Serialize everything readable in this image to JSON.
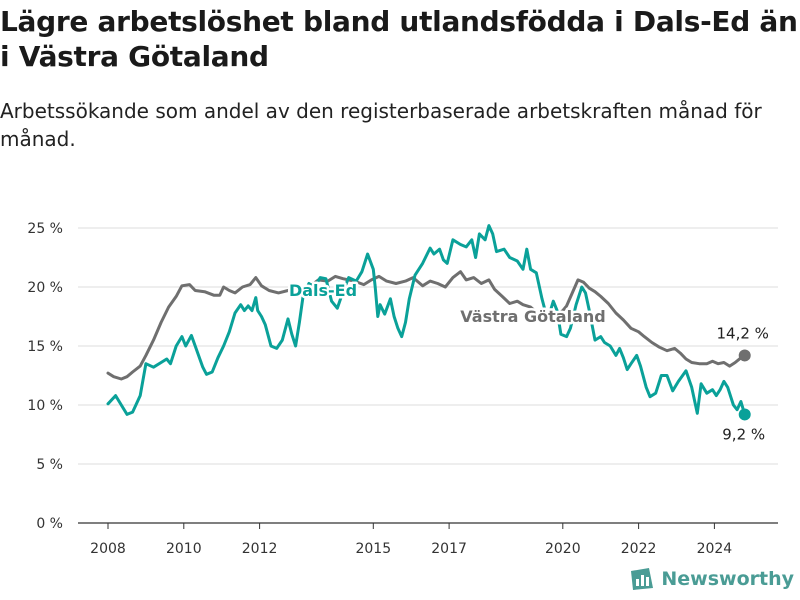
{
  "title": "Lägre arbetslöshet bland utlandsfödda i Dals-Ed än i Västra Götaland",
  "subtitle": "Arbetssökande som andel av den registerbaserade arbetskraften månad för månad.",
  "brand": {
    "name": "Newsworthy",
    "icon": "bar-chart-logo-icon"
  },
  "colors": {
    "dals_ed": "#0aa199",
    "vastra_gotaland": "#6f6f6f",
    "grid": "#dddddd",
    "brand": "#4a9c95"
  },
  "chart_data": {
    "type": "line",
    "title": "Lägre arbetslöshet bland utlandsfödda i Dals-Ed än i Västra Götaland",
    "subtitle": "Arbetssökande som andel av den registerbaserade arbetskraften månad för månad.",
    "xlabel": "",
    "ylabel": "",
    "x_range": [
      2008.0,
      2024.8
    ],
    "x_ticks": [
      2008,
      2010,
      2012,
      2015,
      2017,
      2020,
      2022,
      2024
    ],
    "x_tick_labels": [
      "2008",
      "2010",
      "2012",
      "2015",
      "2017",
      "2020",
      "2022",
      "2024"
    ],
    "ylim": [
      0,
      25
    ],
    "y_ticks": [
      0,
      5,
      10,
      15,
      20,
      25
    ],
    "y_tick_labels": [
      "0 %",
      "5 %",
      "10 %",
      "15 %",
      "20 %",
      "25 %"
    ],
    "grid": "horizontal",
    "series": [
      {
        "name": "Dals-Ed",
        "color": "#0aa199",
        "end_label": "9,2 %",
        "points": [
          [
            2008.0,
            10.1
          ],
          [
            2008.2,
            10.8
          ],
          [
            2008.35,
            10.0
          ],
          [
            2008.5,
            9.2
          ],
          [
            2008.65,
            9.4
          ],
          [
            2008.85,
            10.8
          ],
          [
            2009.0,
            13.5
          ],
          [
            2009.2,
            13.2
          ],
          [
            2009.4,
            13.6
          ],
          [
            2009.55,
            13.9
          ],
          [
            2009.65,
            13.5
          ],
          [
            2009.8,
            15.0
          ],
          [
            2009.95,
            15.8
          ],
          [
            2010.05,
            15.0
          ],
          [
            2010.2,
            15.9
          ],
          [
            2010.3,
            15.0
          ],
          [
            2010.5,
            13.2
          ],
          [
            2010.6,
            12.6
          ],
          [
            2010.75,
            12.8
          ],
          [
            2010.9,
            14.0
          ],
          [
            2011.05,
            15.0
          ],
          [
            2011.2,
            16.2
          ],
          [
            2011.35,
            17.8
          ],
          [
            2011.5,
            18.5
          ],
          [
            2011.6,
            18.0
          ],
          [
            2011.7,
            18.4
          ],
          [
            2011.8,
            18.0
          ],
          [
            2011.9,
            19.1
          ],
          [
            2011.95,
            18.0
          ],
          [
            2012.05,
            17.5
          ],
          [
            2012.15,
            16.8
          ],
          [
            2012.3,
            15.0
          ],
          [
            2012.45,
            14.8
          ],
          [
            2012.6,
            15.5
          ],
          [
            2012.75,
            17.3
          ],
          [
            2012.85,
            16.0
          ],
          [
            2012.95,
            15.0
          ],
          [
            2013.05,
            17.0
          ],
          [
            2013.15,
            19.3
          ],
          [
            2013.3,
            20.3
          ],
          [
            2013.45,
            20.0
          ],
          [
            2013.6,
            20.8
          ],
          [
            2013.75,
            20.7
          ],
          [
            2013.9,
            18.8
          ],
          [
            2014.05,
            18.2
          ],
          [
            2014.2,
            19.6
          ],
          [
            2014.35,
            20.8
          ],
          [
            2014.55,
            20.5
          ],
          [
            2014.7,
            21.3
          ],
          [
            2014.85,
            22.8
          ],
          [
            2015.0,
            21.5
          ],
          [
            2015.05,
            20.0
          ],
          [
            2015.12,
            17.5
          ],
          [
            2015.18,
            18.5
          ],
          [
            2015.3,
            17.7
          ],
          [
            2015.45,
            19.0
          ],
          [
            2015.55,
            17.5
          ],
          [
            2015.65,
            16.5
          ],
          [
            2015.75,
            15.8
          ],
          [
            2015.85,
            17.0
          ],
          [
            2015.95,
            19.0
          ],
          [
            2016.1,
            21.0
          ],
          [
            2016.3,
            22.0
          ],
          [
            2016.5,
            23.3
          ],
          [
            2016.6,
            22.8
          ],
          [
            2016.75,
            23.2
          ],
          [
            2016.85,
            22.3
          ],
          [
            2016.95,
            22.0
          ],
          [
            2017.1,
            24.0
          ],
          [
            2017.3,
            23.6
          ],
          [
            2017.45,
            23.4
          ],
          [
            2017.6,
            24.0
          ],
          [
            2017.7,
            22.5
          ],
          [
            2017.8,
            24.5
          ],
          [
            2017.95,
            24.0
          ],
          [
            2018.05,
            25.2
          ],
          [
            2018.15,
            24.5
          ],
          [
            2018.25,
            23.0
          ],
          [
            2018.45,
            23.2
          ],
          [
            2018.6,
            22.5
          ],
          [
            2018.8,
            22.2
          ],
          [
            2018.95,
            21.5
          ],
          [
            2019.05,
            23.2
          ],
          [
            2019.15,
            21.5
          ],
          [
            2019.3,
            21.2
          ],
          [
            2019.45,
            19.0
          ],
          [
            2019.6,
            17.2
          ],
          [
            2019.75,
            18.8
          ],
          [
            2019.85,
            18.0
          ],
          [
            2019.95,
            16.0
          ],
          [
            2020.1,
            15.8
          ],
          [
            2020.2,
            16.5
          ],
          [
            2020.35,
            18.5
          ],
          [
            2020.5,
            20.0
          ],
          [
            2020.6,
            19.5
          ],
          [
            2020.7,
            18.0
          ],
          [
            2020.85,
            15.5
          ],
          [
            2021.0,
            15.8
          ],
          [
            2021.1,
            15.3
          ],
          [
            2021.25,
            15.0
          ],
          [
            2021.4,
            14.2
          ],
          [
            2021.5,
            14.8
          ],
          [
            2021.6,
            14.0
          ],
          [
            2021.7,
            13.0
          ],
          [
            2021.8,
            13.5
          ],
          [
            2021.95,
            14.2
          ],
          [
            2022.05,
            13.3
          ],
          [
            2022.2,
            11.5
          ],
          [
            2022.3,
            10.7
          ],
          [
            2022.45,
            11.0
          ],
          [
            2022.6,
            12.5
          ],
          [
            2022.75,
            12.5
          ],
          [
            2022.9,
            11.2
          ],
          [
            2023.05,
            12.0
          ],
          [
            2023.25,
            12.9
          ],
          [
            2023.4,
            11.5
          ],
          [
            2023.55,
            9.3
          ],
          [
            2023.65,
            11.8
          ],
          [
            2023.8,
            11.0
          ],
          [
            2023.95,
            11.3
          ],
          [
            2024.05,
            10.8
          ],
          [
            2024.15,
            11.3
          ],
          [
            2024.25,
            12.0
          ],
          [
            2024.35,
            11.5
          ],
          [
            2024.5,
            10.0
          ],
          [
            2024.6,
            9.6
          ],
          [
            2024.7,
            10.3
          ],
          [
            2024.8,
            9.2
          ]
        ]
      },
      {
        "name": "Västra Götaland",
        "color": "#6f6f6f",
        "end_label": "14,2 %",
        "points": [
          [
            2008.0,
            12.7
          ],
          [
            2008.15,
            12.4
          ],
          [
            2008.35,
            12.2
          ],
          [
            2008.5,
            12.4
          ],
          [
            2008.65,
            12.8
          ],
          [
            2008.85,
            13.3
          ],
          [
            2009.0,
            14.2
          ],
          [
            2009.2,
            15.5
          ],
          [
            2009.4,
            17.0
          ],
          [
            2009.6,
            18.3
          ],
          [
            2009.8,
            19.2
          ],
          [
            2009.95,
            20.1
          ],
          [
            2010.15,
            20.2
          ],
          [
            2010.3,
            19.7
          ],
          [
            2010.55,
            19.6
          ],
          [
            2010.8,
            19.3
          ],
          [
            2010.95,
            19.3
          ],
          [
            2011.05,
            20.0
          ],
          [
            2011.2,
            19.7
          ],
          [
            2011.35,
            19.5
          ],
          [
            2011.55,
            20.0
          ],
          [
            2011.75,
            20.2
          ],
          [
            2011.9,
            20.8
          ],
          [
            2012.05,
            20.1
          ],
          [
            2012.25,
            19.7
          ],
          [
            2012.5,
            19.5
          ],
          [
            2012.75,
            19.7
          ],
          [
            2012.95,
            20.0
          ],
          [
            2013.1,
            19.8
          ],
          [
            2013.35,
            20.1
          ],
          [
            2013.55,
            20.6
          ],
          [
            2013.8,
            20.5
          ],
          [
            2014.0,
            20.9
          ],
          [
            2014.2,
            20.7
          ],
          [
            2014.5,
            20.5
          ],
          [
            2014.75,
            20.2
          ],
          [
            2014.95,
            20.6
          ],
          [
            2015.15,
            20.9
          ],
          [
            2015.35,
            20.5
          ],
          [
            2015.6,
            20.3
          ],
          [
            2015.85,
            20.5
          ],
          [
            2016.05,
            20.8
          ],
          [
            2016.3,
            20.1
          ],
          [
            2016.5,
            20.5
          ],
          [
            2016.7,
            20.3
          ],
          [
            2016.9,
            20.0
          ],
          [
            2017.1,
            20.8
          ],
          [
            2017.3,
            21.3
          ],
          [
            2017.45,
            20.6
          ],
          [
            2017.65,
            20.8
          ],
          [
            2017.85,
            20.3
          ],
          [
            2018.05,
            20.6
          ],
          [
            2018.2,
            19.8
          ],
          [
            2018.4,
            19.2
          ],
          [
            2018.6,
            18.6
          ],
          [
            2018.8,
            18.8
          ],
          [
            2018.95,
            18.5
          ],
          [
            2019.15,
            18.3
          ],
          [
            2019.4,
            17.6
          ],
          [
            2019.6,
            17.3
          ],
          [
            2019.8,
            17.5
          ],
          [
            2020.0,
            18.0
          ],
          [
            2020.1,
            18.4
          ],
          [
            2020.25,
            19.5
          ],
          [
            2020.4,
            20.6
          ],
          [
            2020.55,
            20.4
          ],
          [
            2020.7,
            19.9
          ],
          [
            2020.85,
            19.6
          ],
          [
            2021.0,
            19.2
          ],
          [
            2021.2,
            18.6
          ],
          [
            2021.4,
            17.8
          ],
          [
            2021.6,
            17.2
          ],
          [
            2021.8,
            16.5
          ],
          [
            2022.0,
            16.2
          ],
          [
            2022.15,
            15.8
          ],
          [
            2022.35,
            15.3
          ],
          [
            2022.55,
            14.9
          ],
          [
            2022.75,
            14.6
          ],
          [
            2022.95,
            14.8
          ],
          [
            2023.1,
            14.4
          ],
          [
            2023.25,
            13.9
          ],
          [
            2023.4,
            13.6
          ],
          [
            2023.6,
            13.5
          ],
          [
            2023.8,
            13.5
          ],
          [
            2023.95,
            13.7
          ],
          [
            2024.1,
            13.5
          ],
          [
            2024.25,
            13.6
          ],
          [
            2024.4,
            13.3
          ],
          [
            2024.55,
            13.6
          ],
          [
            2024.7,
            14.0
          ],
          [
            2024.8,
            14.2
          ]
        ]
      }
    ]
  }
}
